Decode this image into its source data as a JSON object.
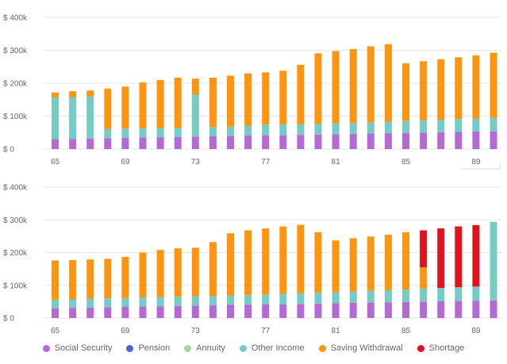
{
  "colors": {
    "social_security": "#b36bd3",
    "pension": "#4a63d8",
    "annuity": "#9fdc95",
    "other_income": "#76cbc4",
    "saving_withdrawal": "#ff9410",
    "shortage": "#e0141e",
    "grid": "#e6e6e6",
    "axis_text": "#666666"
  },
  "legend": [
    {
      "key": "social_security",
      "label": "Social Security",
      "color": "#b36bd3"
    },
    {
      "key": "pension",
      "label": "Pension",
      "color": "#4a63d8"
    },
    {
      "key": "annuity",
      "label": "Annuity",
      "color": "#9fdc95"
    },
    {
      "key": "other_income",
      "label": "Other Income",
      "color": "#76cbc4"
    },
    {
      "key": "saving_withdrawal",
      "label": "Saving Withdrawal",
      "color": "#ff9410"
    },
    {
      "key": "shortage",
      "label": "Shortage",
      "color": "#e0141e"
    }
  ],
  "chart_data": [
    {
      "type": "bar",
      "stacked": true,
      "categories": [
        65,
        66,
        67,
        68,
        69,
        70,
        71,
        72,
        73,
        74,
        75,
        76,
        77,
        78,
        79,
        80,
        81,
        82,
        83,
        84,
        85,
        86,
        87,
        88,
        89,
        90
      ],
      "x_tick_labels": [
        "65",
        "69",
        "73",
        "77",
        "81",
        "85",
        "89"
      ],
      "y_tick_labels": [
        "$ 0",
        "$ 100k",
        "$ 200k",
        "$ 300k",
        "$ 400k"
      ],
      "ylim": [
        0,
        400000
      ],
      "grid": true,
      "series": [
        {
          "name": "Social Security",
          "key": "social_security",
          "values": [
            30000,
            31000,
            32000,
            33000,
            34000,
            35000,
            36000,
            37000,
            38000,
            39000,
            40000,
            41000,
            42000,
            42000,
            43000,
            44000,
            45000,
            46000,
            47000,
            48000,
            49000,
            50000,
            51000,
            52000,
            53000,
            54000
          ]
        },
        {
          "name": "Other Income",
          "key": "other_income",
          "values": [
            127000,
            127000,
            128000,
            28000,
            28000,
            28000,
            28000,
            28000,
            128000,
            28000,
            28000,
            30000,
            32000,
            33000,
            33000,
            33000,
            33000,
            33000,
            34000,
            35000,
            36000,
            37000,
            38000,
            39000,
            40000,
            41000
          ]
        },
        {
          "name": "Saving Withdrawal",
          "key": "saving_withdrawal",
          "values": [
            15000,
            18000,
            18000,
            123000,
            128000,
            140000,
            146000,
            152000,
            48000,
            150000,
            155000,
            159000,
            159000,
            163000,
            180000,
            214000,
            220000,
            225000,
            231000,
            236000,
            176000,
            180000,
            184000,
            188000,
            192000,
            198000
          ]
        }
      ]
    },
    {
      "type": "bar",
      "stacked": true,
      "categories": [
        65,
        66,
        67,
        68,
        69,
        70,
        71,
        72,
        73,
        74,
        75,
        76,
        77,
        78,
        79,
        80,
        81,
        82,
        83,
        84,
        85,
        86,
        87,
        88,
        89,
        90
      ],
      "x_tick_labels": [
        "65",
        "69",
        "73",
        "77",
        "81",
        "85",
        "89"
      ],
      "y_tick_labels": [
        "$ 0",
        "$ 100k",
        "$ 200k",
        "$ 300k",
        "$ 400k"
      ],
      "ylim": [
        0,
        400000
      ],
      "grid": true,
      "series": [
        {
          "name": "Social Security",
          "key": "social_security",
          "values": [
            30000,
            31000,
            32000,
            33000,
            34000,
            35000,
            36000,
            37000,
            38000,
            39000,
            40000,
            41000,
            42000,
            42000,
            43000,
            44000,
            45000,
            46000,
            47000,
            48000,
            49000,
            50000,
            51000,
            52000,
            53000,
            54000
          ]
        },
        {
          "name": "Other Income",
          "key": "other_income",
          "values": [
            26000,
            26000,
            27000,
            27000,
            27000,
            28000,
            28000,
            28000,
            28000,
            28000,
            29000,
            29000,
            30000,
            32000,
            33000,
            33000,
            34000,
            35000,
            36000,
            37000,
            38000,
            40000,
            41000,
            42000,
            43000,
            240000
          ]
        },
        {
          "name": "Saving Withdrawal",
          "key": "saving_withdrawal",
          "values": [
            120000,
            120000,
            120000,
            121000,
            126000,
            137000,
            144000,
            148000,
            149000,
            165000,
            190000,
            198000,
            202000,
            206000,
            209000,
            185000,
            158000,
            163000,
            166000,
            170000,
            175000,
            65000,
            0,
            0,
            0,
            0
          ]
        },
        {
          "name": "Shortage",
          "key": "shortage",
          "values": [
            0,
            0,
            0,
            0,
            0,
            0,
            0,
            0,
            0,
            0,
            0,
            0,
            0,
            0,
            0,
            0,
            0,
            0,
            0,
            0,
            0,
            113000,
            182000,
            186000,
            188000,
            0
          ]
        }
      ]
    }
  ]
}
